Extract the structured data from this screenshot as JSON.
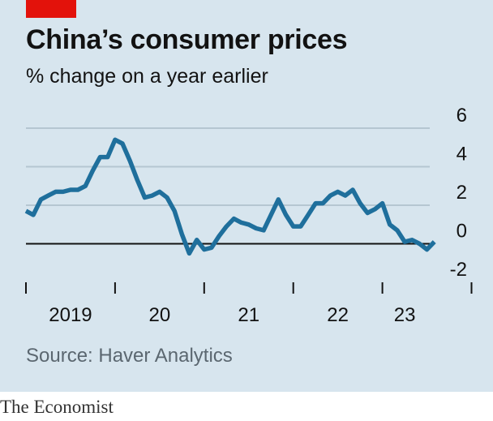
{
  "header": {
    "title": "China’s consumer prices",
    "subtitle": "% change on a year earlier"
  },
  "footer": {
    "source": "Source: Haver Analytics",
    "brand": "The Economist"
  },
  "colors": {
    "panel": "#d7e5ee",
    "accent": "#e3120b",
    "line": "#1f6f9c",
    "grid": "#b5c6d1",
    "zero_line": "#121212"
  },
  "chart_data": {
    "type": "line",
    "title": "China’s consumer prices",
    "subtitle": "% change on a year earlier",
    "xlabel": "",
    "ylabel": "",
    "x_range": [
      2019.0,
      2023.95
    ],
    "ylim": [
      -2,
      6
    ],
    "y_ticks": [
      {
        "value": 6,
        "label": "6"
      },
      {
        "value": 4,
        "label": "4"
      },
      {
        "value": 2,
        "label": "2"
      },
      {
        "value": 0,
        "label": "0"
      },
      {
        "value": -2,
        "label": "-2"
      }
    ],
    "x_ticks": [
      2019,
      2020,
      2021,
      2022,
      2023,
      2024
    ],
    "x_tick_labels": [
      {
        "label": "2019",
        "at": 2019.5
      },
      {
        "label": "20",
        "at": 2020.5
      },
      {
        "label": "21",
        "at": 2021.5
      },
      {
        "label": "22",
        "at": 2022.5
      },
      {
        "label": "23",
        "at": 2023.25
      }
    ],
    "grid": true,
    "legend": "none",
    "series": [
      {
        "x": [
          2019.0,
          2019.083,
          2019.167,
          2019.25,
          2019.333,
          2019.417,
          2019.5,
          2019.583,
          2019.667,
          2019.75,
          2019.833,
          2019.917,
          2020.0,
          2020.083,
          2020.167,
          2020.25,
          2020.333,
          2020.417,
          2020.5,
          2020.583,
          2020.667,
          2020.75,
          2020.833,
          2020.917,
          2021.0,
          2021.083,
          2021.167,
          2021.25,
          2021.333,
          2021.417,
          2021.5,
          2021.583,
          2021.667,
          2021.75,
          2021.833,
          2021.917,
          2022.0,
          2022.083,
          2022.167,
          2022.25,
          2022.333,
          2022.417,
          2022.5,
          2022.583,
          2022.667,
          2022.75,
          2022.833,
          2022.917,
          2023.0,
          2023.083,
          2023.167,
          2023.25,
          2023.333,
          2023.417,
          2023.5,
          2023.583
        ],
        "values": [
          1.7,
          1.5,
          2.3,
          2.5,
          2.7,
          2.7,
          2.8,
          2.8,
          3.0,
          3.8,
          4.5,
          4.5,
          5.4,
          5.2,
          4.3,
          3.3,
          2.4,
          2.5,
          2.7,
          2.4,
          1.7,
          0.5,
          -0.5,
          0.2,
          -0.3,
          -0.2,
          0.4,
          0.9,
          1.3,
          1.1,
          1.0,
          0.8,
          0.7,
          1.5,
          2.3,
          1.5,
          0.9,
          0.9,
          1.5,
          2.1,
          2.1,
          2.5,
          2.7,
          2.5,
          2.8,
          2.1,
          1.6,
          1.8,
          2.1,
          1.0,
          0.7,
          0.1,
          0.2,
          0.0,
          -0.3,
          0.1
        ]
      }
    ]
  }
}
